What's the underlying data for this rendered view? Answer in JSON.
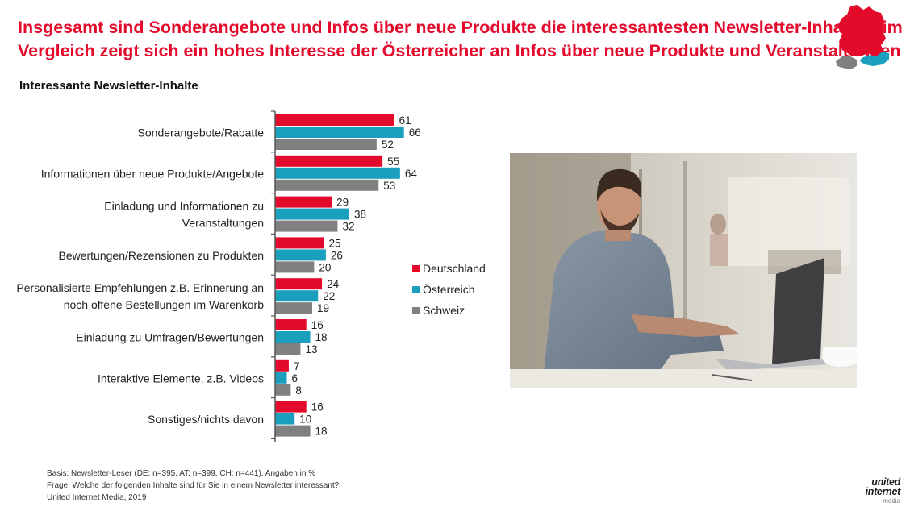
{
  "header": {
    "title_line1": "Insgesamt sind Sonderangebote und Infos über neue Produkte die interessantesten Newsletter-Inhalte – im",
    "title_line2": "Vergleich zeigt sich ein hohes Interesse der Österreicher an Infos über neue Produkte und Veranstaltungen",
    "subtitle": "Interessante Newsletter-Inhalte"
  },
  "chart_data": {
    "type": "bar",
    "orientation": "horizontal",
    "categories": [
      [
        "Sonderangebote/Rabatte"
      ],
      [
        "Informationen über neue Produkte/Angebote"
      ],
      [
        "Einladung und Informationen zu",
        "Veranstaltungen"
      ],
      [
        "Bewertungen/Rezensionen zu Produkten"
      ],
      [
        "Personalisierte Empfehlungen z.B. Erinnerung an",
        "noch offene Bestellungen im Warenkorb"
      ],
      [
        "Einladung zu Umfragen/Bewertungen"
      ],
      [
        "Interaktive Elemente, z.B. Videos"
      ],
      [
        "Sonstiges/nichts davon"
      ]
    ],
    "series": [
      {
        "name": "Deutschland",
        "color": "#e30a2c",
        "values": [
          61,
          55,
          29,
          25,
          24,
          16,
          7,
          16
        ]
      },
      {
        "name": "Österreich",
        "color": "#1aa0bc",
        "values": [
          66,
          64,
          38,
          26,
          22,
          18,
          6,
          10
        ]
      },
      {
        "name": "Schweiz",
        "color": "#808080",
        "values": [
          52,
          53,
          32,
          20,
          19,
          13,
          8,
          18
        ]
      }
    ],
    "xlim": [
      0,
      100
    ],
    "legend_position": "right",
    "grid": false
  },
  "legend": [
    {
      "label": "Deutschland",
      "color": "#e30a2c"
    },
    {
      "label": "Österreich",
      "color": "#1aa0bc"
    },
    {
      "label": "Schweiz",
      "color": "#808080"
    }
  ],
  "footnote": {
    "basis": "Basis: Newsletter-Leser (DE: n=395, AT: n=399, CH: n=441), Angaben in %",
    "frage": "Frage: Welche der folgenden Inhalte sind für Sie in einem Newsletter interessant?",
    "source": "United Internet Media, 2019"
  },
  "logo": {
    "line1": "united",
    "line2": "internet",
    "line3": "media"
  },
  "photo": {
    "icon": "man-with-laptop-photo"
  },
  "map": {
    "icon": "dach-map-icon",
    "colors": {
      "germany": "#e30a2c",
      "austria": "#1aa0bc",
      "switzerland": "#808080"
    }
  }
}
